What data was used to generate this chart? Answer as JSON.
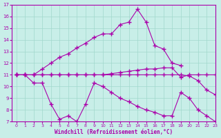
{
  "xlabel": "Windchill (Refroidissement éolien,°C)",
  "bg_color": "#c8eee8",
  "grid_color": "#a0d8cc",
  "line_color": "#aa00aa",
  "xlim": [
    -0.5,
    23
  ],
  "ylim": [
    7,
    17
  ],
  "xticks": [
    0,
    1,
    2,
    3,
    4,
    5,
    6,
    7,
    8,
    9,
    10,
    11,
    12,
    13,
    14,
    15,
    16,
    17,
    18,
    19,
    20,
    21,
    22,
    23
  ],
  "yticks": [
    7,
    8,
    9,
    10,
    11,
    12,
    13,
    14,
    15,
    16,
    17
  ],
  "line1_x": [
    0,
    1,
    2,
    3,
    4,
    5,
    6,
    7,
    8,
    9,
    10,
    11,
    12,
    13,
    14,
    15,
    16,
    17,
    18,
    19
  ],
  "line1_y": [
    11.0,
    11.0,
    11.0,
    11.5,
    12.0,
    12.5,
    12.8,
    13.3,
    13.7,
    14.2,
    14.5,
    14.5,
    15.3,
    15.5,
    16.6,
    15.5,
    13.5,
    13.2,
    12.0,
    11.8
  ],
  "line2_x": [
    0,
    1,
    2,
    3,
    4,
    5,
    6,
    7,
    8,
    9,
    10,
    11,
    12,
    13,
    14,
    15,
    16,
    17,
    18,
    19,
    20,
    21,
    22,
    23
  ],
  "line2_y": [
    11.0,
    11.0,
    11.0,
    11.0,
    11.0,
    11.0,
    11.0,
    11.0,
    11.0,
    11.0,
    11.0,
    11.1,
    11.2,
    11.3,
    11.4,
    11.5,
    11.5,
    11.6,
    11.6,
    10.8,
    11.0,
    11.0,
    11.0,
    11.0
  ],
  "line3_x": [
    0,
    1,
    2,
    3,
    4,
    5,
    6,
    7,
    8,
    9,
    10,
    11,
    12,
    13,
    14,
    15,
    16,
    17,
    18,
    19,
    20,
    21,
    22,
    23
  ],
  "line3_y": [
    11.0,
    11.0,
    10.3,
    10.3,
    8.5,
    7.2,
    7.5,
    7.0,
    8.5,
    10.3,
    10.0,
    9.5,
    9.0,
    8.7,
    8.3,
    8.0,
    7.8,
    7.5,
    7.5,
    9.5,
    9.0,
    8.0,
    7.5,
    7.0
  ],
  "line4_x": [
    0,
    1,
    2,
    3,
    4,
    5,
    6,
    7,
    8,
    9,
    10,
    11,
    12,
    13,
    14,
    15,
    16,
    17,
    18,
    19,
    20,
    21,
    22,
    23
  ],
  "line4_y": [
    11.0,
    11.0,
    11.0,
    11.0,
    11.0,
    11.0,
    11.0,
    11.0,
    11.0,
    11.0,
    11.0,
    11.0,
    11.0,
    11.0,
    11.0,
    11.0,
    11.0,
    11.0,
    11.0,
    11.0,
    10.9,
    10.5,
    9.7,
    9.3
  ]
}
